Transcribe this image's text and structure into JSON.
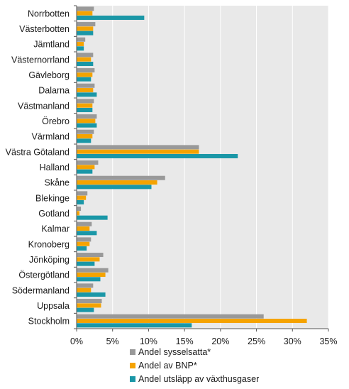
{
  "chart_data": {
    "type": "bar",
    "orientation": "horizontal",
    "categories": [
      "Norrbotten",
      "Västerbotten",
      "Jämtland",
      "Västernorrland",
      "Gävleborg",
      "Dalarna",
      "Västmanland",
      "Örebro",
      "Värmland",
      "Västra Götaland",
      "Halland",
      "Skåne",
      "Blekinge",
      "Gotland",
      "Kalmar",
      "Kronoberg",
      "Jönköping",
      "Östergötland",
      "Södermanland",
      "Uppsala",
      "Stockholm"
    ],
    "series": [
      {
        "name": "Andel sysselsatta*",
        "color": "#999999",
        "values": [
          2.4,
          2.6,
          1.2,
          2.3,
          2.5,
          2.5,
          2.4,
          2.8,
          2.4,
          17.0,
          3.0,
          12.3,
          1.5,
          0.6,
          2.1,
          2.0,
          3.7,
          4.4,
          2.3,
          3.5,
          26.0
        ]
      },
      {
        "name": "Andel av BNP*",
        "color": "#F5A300",
        "values": [
          2.2,
          2.3,
          1.0,
          2.0,
          2.2,
          2.3,
          2.2,
          2.6,
          2.2,
          17.0,
          2.5,
          11.2,
          1.3,
          0.4,
          1.8,
          1.8,
          3.2,
          4.0,
          2.0,
          3.4,
          32.0
        ]
      },
      {
        "name": "Andel utsläpp av växthusgaser",
        "color": "#1A97A7",
        "values": [
          9.4,
          2.3,
          1.0,
          2.3,
          2.0,
          2.8,
          2.2,
          2.8,
          2.0,
          22.4,
          2.2,
          10.4,
          1.0,
          4.3,
          2.8,
          1.4,
          2.5,
          3.3,
          4.0,
          2.4,
          16.0
        ]
      }
    ],
    "xlim": [
      0,
      35
    ],
    "xticks": [
      0,
      5,
      10,
      15,
      20,
      25,
      30,
      35
    ],
    "tick_suffix": "%",
    "grid": true,
    "legend_position": "bottom-right"
  }
}
